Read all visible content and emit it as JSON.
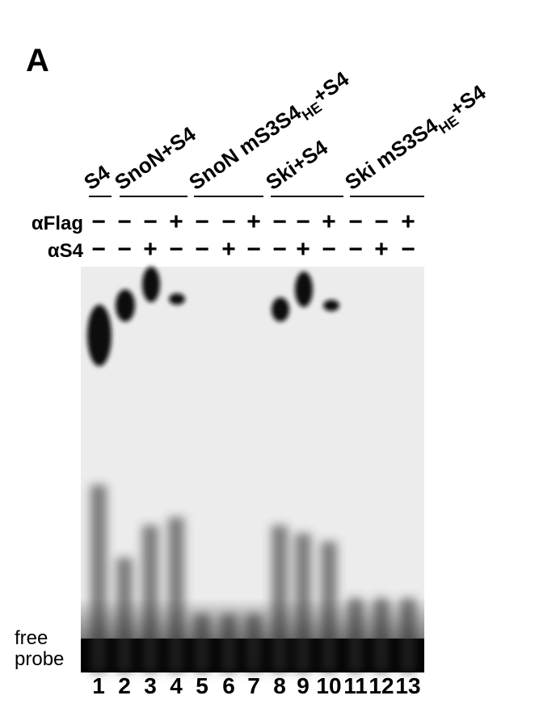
{
  "panel": "A",
  "groups": [
    {
      "text": "S4"
    },
    {
      "text": "SnoN+S4"
    },
    {
      "text": "SnoN mS3S4",
      "sub": "HE",
      "after": "+S4"
    },
    {
      "text": "Ski+S4"
    },
    {
      "text": "Ski mS3S4",
      "sub": "HE",
      "after": "+S4"
    }
  ],
  "rows": [
    {
      "label": "αFlag",
      "signs": [
        "−",
        "−",
        "−",
        "+",
        "−",
        "−",
        "+",
        "−",
        "−",
        "+",
        "−",
        "−",
        "+"
      ]
    },
    {
      "label": "αS4",
      "signs": [
        "−",
        "−",
        "+",
        "−",
        "−",
        "+",
        "−",
        "−",
        "+",
        "−",
        "−",
        "+",
        "−"
      ]
    }
  ],
  "free_probe": [
    "free",
    "probe"
  ],
  "lanes": [
    "1",
    "2",
    "3",
    "4",
    "5",
    "6",
    "7",
    "8",
    "9",
    "10",
    "11",
    "12",
    "13"
  ]
}
